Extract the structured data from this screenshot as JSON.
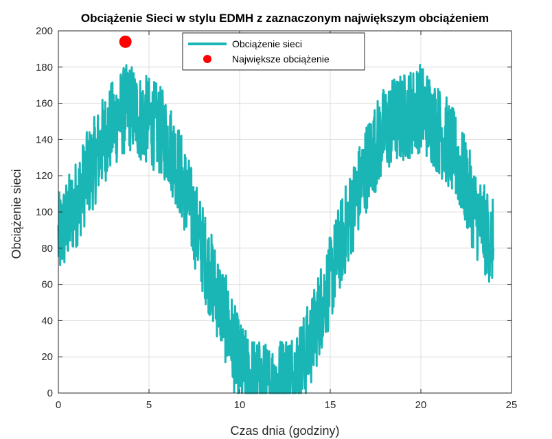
{
  "chart_data": {
    "type": "line",
    "title": "Obciążenie Sieci w stylu EDMH z zaznaczonym największym obciążeniem",
    "xlabel": "Czas dnia (godziny)",
    "ylabel": "Obciążenie sieci",
    "xlim": [
      0,
      25
    ],
    "ylim": [
      0,
      200
    ],
    "xticks": [
      0,
      5,
      10,
      15,
      20,
      25
    ],
    "yticks": [
      0,
      20,
      40,
      60,
      80,
      100,
      120,
      140,
      160,
      180,
      200
    ],
    "grid": true,
    "legend_position": "top-center",
    "series": [
      {
        "name": "Obciążenie sieci",
        "color": "#1ab5b5",
        "type": "line",
        "x": [
          0,
          0.5,
          1,
          1.5,
          2,
          2.5,
          3,
          3.5,
          4,
          4.5,
          5,
          5.5,
          6,
          6.5,
          7,
          7.5,
          8,
          8.5,
          9,
          9.5,
          10,
          10.5,
          11,
          11.5,
          12,
          12.5,
          13,
          13.5,
          14,
          14.5,
          15,
          15.5,
          16,
          16.5,
          17,
          17.5,
          18,
          18.5,
          19,
          19.5,
          20,
          20.5,
          21,
          21.5,
          22,
          22.5,
          23,
          23.5,
          24
        ],
        "y": [
          85,
          95,
          105,
          118,
          128,
          140,
          148,
          155,
          158,
          152,
          150,
          146,
          140,
          128,
          112,
          95,
          78,
          62,
          48,
          32,
          15,
          8,
          5,
          3,
          5,
          8,
          10,
          18,
          30,
          48,
          62,
          80,
          95,
          110,
          125,
          136,
          145,
          150,
          152,
          155,
          158,
          152,
          145,
          138,
          128,
          115,
          100,
          90,
          82
        ],
        "noise": 25
      },
      {
        "name": "Największe obciążenie",
        "color": "#ff0000",
        "type": "scatter",
        "x": [
          3.7
        ],
        "y": [
          194
        ]
      }
    ]
  }
}
